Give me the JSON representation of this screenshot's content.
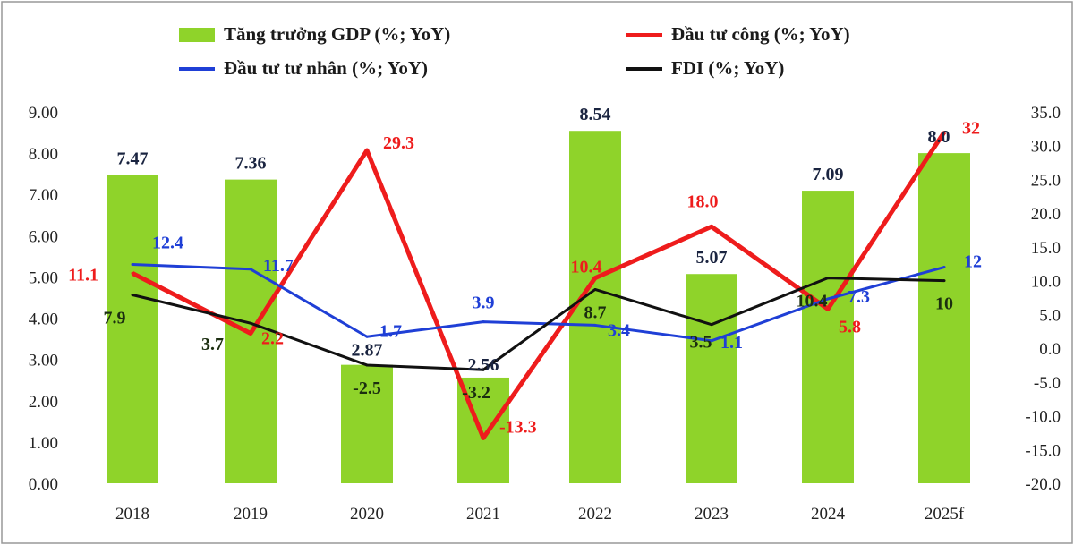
{
  "chart_data": {
    "type": "bar+line",
    "categories": [
      "2018",
      "2019",
      "2020",
      "2021",
      "2022",
      "2023",
      "2024",
      "2025f"
    ],
    "y_left": {
      "range": [
        0,
        9
      ],
      "ticks": [
        "0.00",
        "1.00",
        "2.00",
        "3.00",
        "4.00",
        "5.00",
        "6.00",
        "7.00",
        "8.00",
        "9.00"
      ]
    },
    "y_right": {
      "range": [
        -20,
        35
      ],
      "ticks": [
        "-20.0",
        "-15.0",
        "-10.0",
        "-5.0",
        "0.0",
        "5.0",
        "10.0",
        "15.0",
        "20.0",
        "25.0",
        "30.0",
        "35.0"
      ]
    },
    "grid": false,
    "legend_placement": "top",
    "series": [
      {
        "name": "Tăng trưởng GDP (%; YoY)",
        "kind": "bar",
        "axis": "left",
        "color": "#8fd32a",
        "values": [
          7.47,
          7.36,
          2.87,
          2.56,
          8.54,
          5.07,
          7.09,
          8.0
        ],
        "labels": [
          "7.47",
          "7.36",
          "2.87",
          "2.56",
          "8.54",
          "5.07",
          "7.09",
          "8.0"
        ]
      },
      {
        "name": "Đầu tư công (%; YoY)",
        "kind": "line",
        "axis": "right",
        "color": "#ee1c1c",
        "values": [
          11.1,
          2.2,
          29.3,
          -13.3,
          10.4,
          18.0,
          5.8,
          32
        ],
        "labels": [
          "11.1",
          "2.2",
          "29.3",
          "-13.3",
          "10.4",
          "18.0",
          "5.8",
          "32"
        ]
      },
      {
        "name": "Đầu tư tư nhân (%; YoY)",
        "kind": "line",
        "axis": "right",
        "color": "#1f3fd6",
        "values": [
          12.4,
          11.7,
          1.7,
          3.9,
          3.4,
          1.1,
          7.3,
          12
        ],
        "labels": [
          "12.4",
          "11.7",
          "1.7",
          "3.9",
          "3.4",
          "1.1",
          "7.3",
          "12"
        ]
      },
      {
        "name": "FDI (%; YoY)",
        "kind": "line",
        "axis": "right",
        "color": "#111111",
        "values": [
          7.9,
          3.7,
          -2.5,
          -3.2,
          8.7,
          3.5,
          10.4,
          10
        ],
        "labels": [
          "7.9",
          "3.7",
          "-2.5",
          "-3.2",
          "8.7",
          "3.5",
          "10.4",
          "10"
        ]
      }
    ]
  }
}
